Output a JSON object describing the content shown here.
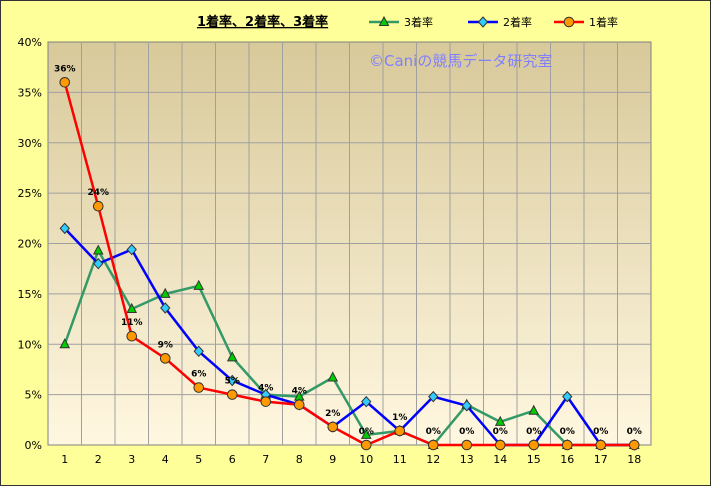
{
  "chart_data": {
    "type": "line",
    "title": "1着率、2着率、3着率",
    "watermark": "©Caniの競馬データ研究室",
    "categories": [
      "1",
      "2",
      "3",
      "4",
      "5",
      "6",
      "7",
      "8",
      "9",
      "10",
      "11",
      "12",
      "13",
      "14",
      "15",
      "16",
      "17",
      "18"
    ],
    "ylim": [
      0,
      40
    ],
    "yticks": [
      "0%",
      "5%",
      "10%",
      "15%",
      "20%",
      "25%",
      "30%",
      "35%",
      "40%"
    ],
    "grid": true,
    "legend_position": "top",
    "series": [
      {
        "name": "3着率",
        "color": "#339966",
        "marker": "triangle",
        "marker_color": "#00CC00",
        "values": [
          10,
          19.3,
          13.5,
          15,
          15.8,
          8.7,
          5,
          4.8,
          6.7,
          1,
          1.4,
          0,
          4,
          2.3,
          3.4,
          0,
          0,
          0
        ]
      },
      {
        "name": "2着率",
        "color": "#0000FF",
        "marker": "diamond",
        "marker_color": "#33CCFF",
        "values": [
          21.5,
          18,
          19.4,
          13.6,
          9.3,
          6.4,
          5,
          4,
          1.8,
          4.3,
          1.4,
          4.8,
          3.9,
          0,
          0,
          4.8,
          0,
          0
        ]
      },
      {
        "name": "1着率",
        "color": "#FF0000",
        "marker": "circle",
        "marker_color": "#FF9900",
        "values": [
          36,
          23.7,
          10.8,
          8.6,
          5.7,
          5,
          4.3,
          4,
          1.8,
          0,
          1.4,
          0,
          0,
          0,
          0,
          0,
          0,
          0
        ],
        "data_labels": [
          "36%",
          "24%",
          "11%",
          "9%",
          "6%",
          "5%",
          "4%",
          "4%",
          "2%",
          "0%",
          "1%",
          "0%",
          "0%",
          "0%",
          "0%",
          "0%",
          "0%",
          "0%"
        ]
      }
    ]
  }
}
